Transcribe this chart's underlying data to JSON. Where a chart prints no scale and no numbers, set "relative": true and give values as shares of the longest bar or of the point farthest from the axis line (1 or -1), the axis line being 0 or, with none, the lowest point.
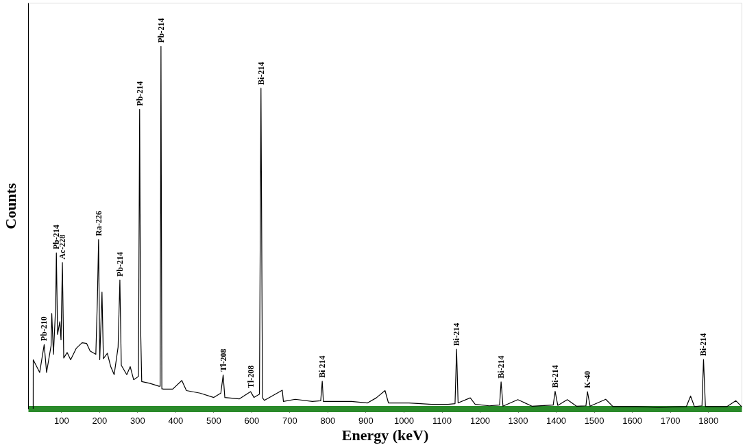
{
  "chart_data": {
    "type": "line",
    "xlabel": "Energy (keV)",
    "ylabel": "Counts",
    "relative": true,
    "xlim": [
      13,
      1888
    ],
    "xticks": [
      100,
      200,
      300,
      400,
      500,
      600,
      700,
      800,
      900,
      1000,
      1100,
      1200,
      1300,
      1400,
      1500,
      1600,
      1700,
      1800
    ],
    "x": [
      26.4,
      26.5,
      43.4,
      55.3,
      61.5,
      73.4,
      75.2,
      79.6,
      85.5,
      87.3,
      90.4,
      96.4,
      99.5,
      103.1,
      106.7,
      115.7,
      124.8,
      139.8,
      154.8,
      166.9,
      176,
      191,
      195.3,
      198.2,
      201.3,
      207.2,
      210.9,
      221.2,
      230.2,
      239.2,
      249.5,
      254.2,
      257.9,
      272.3,
      281.4,
      290.4,
      303,
      306.1,
      308.5,
      311.6,
      332.6,
      356.8,
      360,
      362.2,
      364.5,
      368.9,
      393,
      417,
      429,
      465,
      501,
      519.5,
      525.6,
      530,
      567.8,
      597.8,
      606.7,
      621,
      625,
      629,
      634,
      681,
      684,
      715,
      760,
      782,
      786,
      789,
      794,
      863,
      905,
      928,
      951,
      960,
      1014,
      1074,
      1116,
      1135,
      1139,
      1143,
      1175,
      1188,
      1225,
      1252,
      1256,
      1261,
      1300,
      1337,
      1393,
      1398,
      1405,
      1430,
      1454,
      1479,
      1483,
      1490,
      1531,
      1550,
      1611,
      1671,
      1743,
      1754,
      1764,
      1784,
      1788,
      1793,
      1850,
      1873,
      1888
    ],
    "series": [
      {
        "color": "#000000",
        "values": [
          0,
          0.135,
          0.1,
          0.177,
          0.1,
          0.174,
          0.263,
          0.15,
          0.283,
          0.43,
          0.205,
          0.24,
          0.19,
          0.403,
          0.14,
          0.155,
          0.135,
          0.167,
          0.182,
          0.18,
          0.159,
          0.15,
          0.31,
          0.467,
          0.135,
          0.322,
          0.138,
          0.153,
          0.116,
          0.094,
          0.17,
          0.355,
          0.12,
          0.094,
          0.116,
          0.08,
          0.089,
          0.826,
          0.233,
          0.075,
          0.07,
          0.062,
          0.062,
          1.0,
          0.055,
          0.054,
          0.054,
          0.078,
          0.05,
          0.043,
          0.031,
          0.043,
          0.093,
          0.031,
          0.027,
          0.047,
          0.031,
          0.04,
          0.884,
          0.03,
          0.023,
          0.051,
          0.02,
          0.026,
          0.02,
          0.022,
          0.076,
          0.02,
          0.02,
          0.02,
          0.016,
          0.03,
          0.05,
          0.016,
          0.016,
          0.012,
          0.012,
          0.014,
          0.164,
          0.016,
          0.03,
          0.012,
          0.008,
          0.01,
          0.074,
          0.007,
          0.025,
          0.007,
          0.01,
          0.048,
          0.009,
          0.025,
          0.007,
          0.008,
          0.047,
          0.007,
          0.026,
          0.006,
          0.006,
          0.004,
          0.006,
          0.035,
          0.006,
          0.008,
          0.136,
          0.006,
          0.006,
          0.022,
          0.006
        ]
      }
    ],
    "annotations": [
      {
        "text": "Pb-210",
        "x": 55.3,
        "y": 0.177
      },
      {
        "text": "Pb-214",
        "x": 87.3,
        "y": 0.43
      },
      {
        "text": "Ac-228",
        "x": 103.1,
        "y": 0.403
      },
      {
        "text": "Ra-226",
        "x": 198.2,
        "y": 0.467
      },
      {
        "text": "Pb-214",
        "x": 254.2,
        "y": 0.355
      },
      {
        "text": "Pb-214",
        "x": 306.1,
        "y": 0.826
      },
      {
        "text": "Pb-214",
        "x": 362.2,
        "y": 1.0
      },
      {
        "text": "Tl-208",
        "x": 525.6,
        "y": 0.093
      },
      {
        "text": "Tl-208",
        "x": 597.8,
        "y": 0.047
      },
      {
        "text": "Bi-214",
        "x": 625,
        "y": 0.884
      },
      {
        "text": "Bi 214",
        "x": 786,
        "y": 0.076
      },
      {
        "text": "Bi-214",
        "x": 1139,
        "y": 0.164
      },
      {
        "text": "Bi-214",
        "x": 1256,
        "y": 0.074
      },
      {
        "text": "Bi-214",
        "x": 1398,
        "y": 0.048
      },
      {
        "text": "K-40",
        "x": 1483,
        "y": 0.047
      },
      {
        "text": "Bi-214",
        "x": 1788,
        "y": 0.136
      }
    ]
  }
}
